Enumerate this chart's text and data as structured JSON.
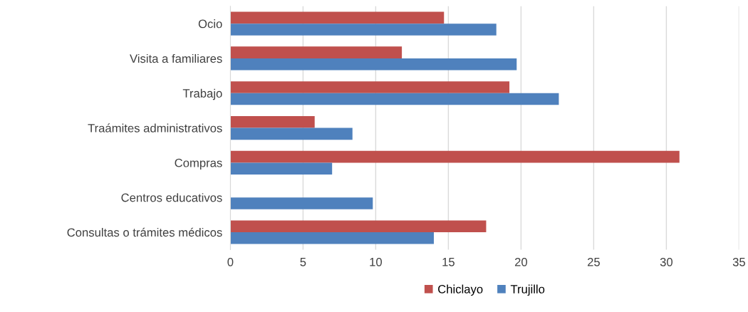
{
  "chart_data": {
    "type": "bar",
    "orientation": "horizontal",
    "categories": [
      "Ocio",
      "Visita a familiares",
      "Trabajo",
      "Traámites administrativos",
      "Compras",
      "Centros educativos",
      "Consultas o trámites médicos"
    ],
    "series": [
      {
        "name": "Chiclayo",
        "color": "#c0504d",
        "values": [
          14.7,
          11.8,
          19.2,
          5.8,
          30.9,
          null,
          17.6
        ]
      },
      {
        "name": "Trujillo",
        "color": "#4f81bd",
        "values": [
          18.3,
          19.7,
          22.6,
          8.4,
          7.0,
          9.8,
          14.0
        ]
      }
    ],
    "xlim": [
      0,
      35
    ],
    "xticks": [
      0,
      5,
      10,
      15,
      20,
      25,
      30,
      35
    ],
    "grid": "x",
    "legend": "bottom"
  }
}
